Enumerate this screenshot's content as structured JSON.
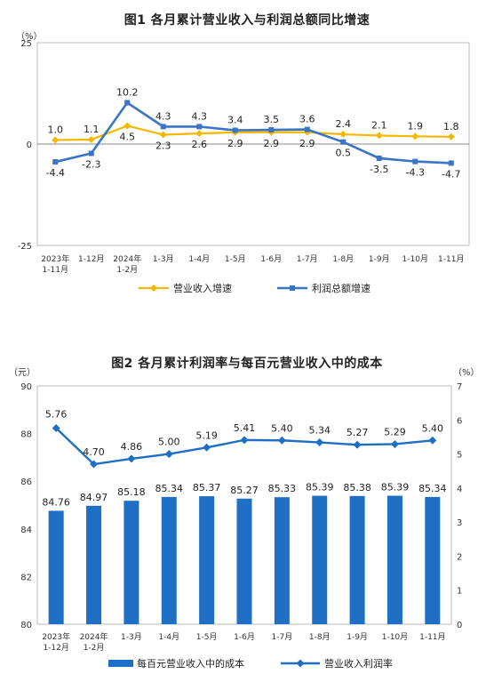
{
  "chart_data": [
    {
      "type": "line",
      "title": "图1  各月累计营业收入与利润总额同比增速",
      "ylabel": "（%）",
      "ylim": [
        -25,
        25
      ],
      "yticks": [
        -25,
        0,
        25
      ],
      "categories": [
        [
          "2023年",
          "1-11月"
        ],
        [
          "1-12月"
        ],
        [
          "2024年",
          "1-2月"
        ],
        [
          "1-3月"
        ],
        [
          "1-4月"
        ],
        [
          "1-5月"
        ],
        [
          "1-6月"
        ],
        [
          "1-7月"
        ],
        [
          "1-8月"
        ],
        [
          "1-9月"
        ],
        [
          "1-10月"
        ],
        [
          "1-11月"
        ]
      ],
      "series": [
        {
          "name": "营业收入增速",
          "color": "#F5B800",
          "values": [
            1.0,
            1.1,
            4.5,
            2.3,
            2.6,
            2.9,
            2.9,
            2.9,
            2.4,
            2.1,
            1.9,
            1.8
          ]
        },
        {
          "name": "利润总额增速",
          "color": "#3A74C4",
          "values": [
            -4.4,
            -2.3,
            10.2,
            4.3,
            4.3,
            3.4,
            3.5,
            3.6,
            0.5,
            -3.5,
            -4.3,
            -4.7
          ]
        }
      ],
      "labels_revenue": [
        "1.0",
        "1.1",
        "4.5",
        "2.3",
        "2.6",
        "2.9",
        "2.9",
        "2.9",
        "2.4",
        "2.1",
        "1.9",
        "1.8"
      ],
      "labels_profit": [
        "-4.4",
        "-2.3",
        "10.2",
        "4.3",
        "4.3",
        "3.4",
        "3.5",
        "3.6",
        "0.5",
        "-3.5",
        "-4.3",
        "-4.7"
      ],
      "legend": "bottom"
    },
    {
      "type": "bar",
      "title": "图2  各月累计利润率与每百元营业收入中的成本",
      "ylabel_left": "（元）",
      "ylabel_right": "（%）",
      "ylim_left": [
        80,
        90
      ],
      "yticks_left": [
        80,
        82,
        84,
        86,
        88,
        90
      ],
      "ylim_right": [
        0,
        7
      ],
      "yticks_right": [
        0,
        1,
        2,
        3,
        4,
        5,
        6,
        7
      ],
      "categories": [
        [
          "2023年",
          "1-12月"
        ],
        [
          "2024年",
          "1-2月"
        ],
        [
          "1-3月"
        ],
        [
          "1-4月"
        ],
        [
          "1-5月"
        ],
        [
          "1-6月"
        ],
        [
          "1-7月"
        ],
        [
          "1-8月"
        ],
        [
          "1-9月"
        ],
        [
          "1-10月"
        ],
        [
          "1-11月"
        ]
      ],
      "series": [
        {
          "name": "每百元营业收入中的成本",
          "type": "bar",
          "axis": "left",
          "color": "#1F6FC5",
          "values": [
            84.76,
            84.97,
            85.18,
            85.34,
            85.37,
            85.27,
            85.33,
            85.39,
            85.38,
            85.39,
            85.34
          ]
        },
        {
          "name": "营业收入利润率",
          "type": "line",
          "axis": "right",
          "color": "#1F6FC5",
          "values": [
            5.76,
            4.7,
            4.86,
            5.0,
            5.19,
            5.41,
            5.4,
            5.34,
            5.27,
            5.29,
            5.4
          ]
        }
      ],
      "labels_bar": [
        "84.76",
        "84.97",
        "85.18",
        "85.34",
        "85.37",
        "85.27",
        "85.33",
        "85.39",
        "85.38",
        "85.39",
        "85.34"
      ],
      "labels_line": [
        "5.76",
        "4.70",
        "4.86",
        "5.00",
        "5.19",
        "5.41",
        "5.40",
        "5.34",
        "5.27",
        "5.29",
        "5.40"
      ],
      "legend": "bottom"
    }
  ]
}
